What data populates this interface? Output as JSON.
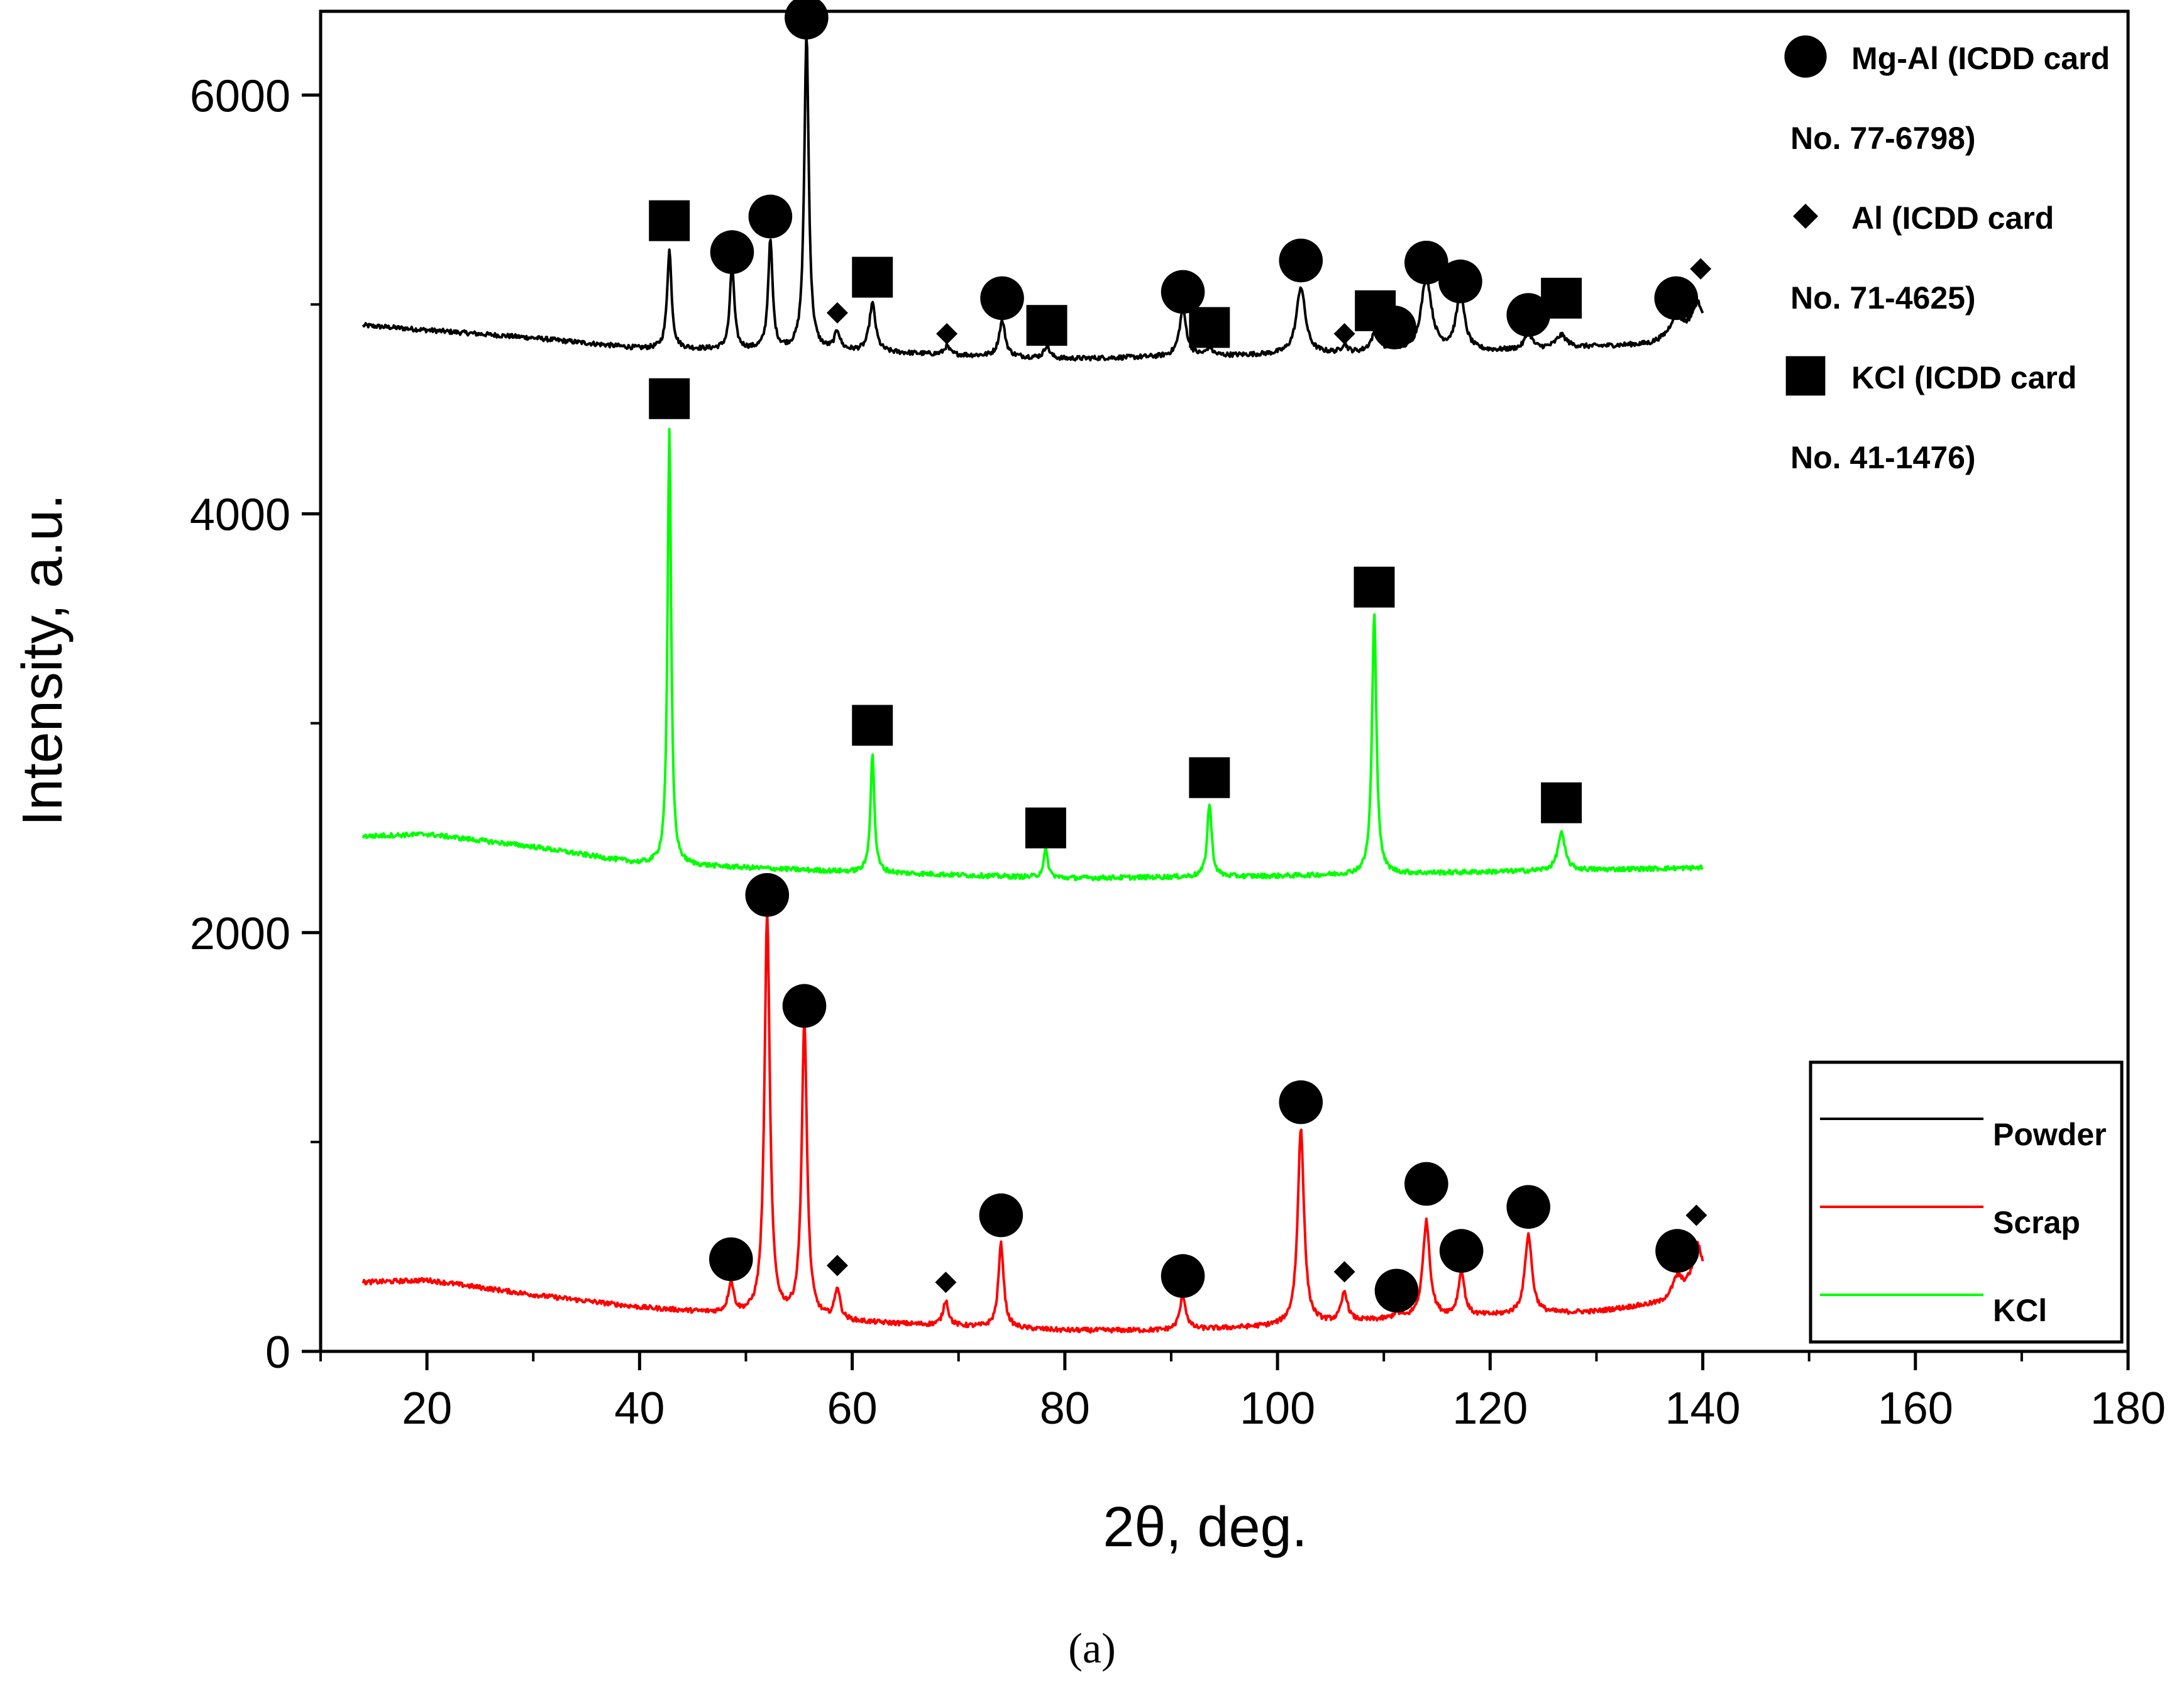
{
  "chart_data": {
    "type": "line",
    "title": "",
    "xlabel": "2θ, deg.",
    "ylabel": "Intensity, a.u.",
    "caption": "(a)",
    "xlim": [
      10,
      180
    ],
    "ylim": [
      0,
      6400
    ],
    "xticks": [
      20,
      40,
      60,
      80,
      100,
      120,
      140,
      160,
      180
    ],
    "xtick_labels": [
      "20",
      "40",
      "60",
      "80",
      "100",
      "120",
      "140",
      "160",
      "180"
    ],
    "yticks": [
      0,
      2000,
      4000,
      6000
    ],
    "ytick_labels": [
      "0",
      "2000",
      "4000",
      "6000"
    ],
    "grid": false,
    "series": [
      {
        "name": "Powder",
        "color": "#000000",
        "baseline": [
          [
            14,
            4900
          ],
          [
            30,
            4840
          ],
          [
            40,
            4790
          ],
          [
            60,
            4775
          ],
          [
            80,
            4740
          ],
          [
            100,
            4760
          ],
          [
            120,
            4775
          ],
          [
            135,
            4810
          ],
          [
            140,
            4890
          ]
        ],
        "peaks": [
          [
            42.8,
            470,
            0.25
          ],
          [
            48.7,
            400,
            0.25
          ],
          [
            52.3,
            520,
            0.25
          ],
          [
            55.7,
            1520,
            0.25
          ],
          [
            58.6,
            90,
            0.3
          ],
          [
            61.9,
            230,
            0.35
          ],
          [
            68.9,
            40,
            0.3
          ],
          [
            74.1,
            170,
            0.35
          ],
          [
            78.3,
            60,
            0.3
          ],
          [
            91.1,
            220,
            0.4
          ],
          [
            93.6,
            40,
            0.3
          ],
          [
            102.2,
            320,
            0.5
          ],
          [
            106.3,
            40,
            0.3
          ],
          [
            109.2,
            90,
            0.5
          ],
          [
            111.0,
            30,
            0.3
          ],
          [
            114.0,
            350,
            0.6
          ],
          [
            117.2,
            260,
            0.5
          ],
          [
            123.6,
            80,
            0.4
          ],
          [
            126.7,
            60,
            0.6
          ],
          [
            137.5,
            100,
            0.6
          ],
          [
            139.5,
            120,
            0.6
          ]
        ]
      },
      {
        "name": "Scrap",
        "color": "#ff0000",
        "baseline": [
          [
            14,
            330
          ],
          [
            20,
            340
          ],
          [
            30,
            270
          ],
          [
            40,
            210
          ],
          [
            50,
            170
          ],
          [
            60,
            140
          ],
          [
            70,
            120
          ],
          [
            80,
            100
          ],
          [
            90,
            100
          ],
          [
            100,
            120
          ],
          [
            110,
            150
          ],
          [
            120,
            170
          ],
          [
            130,
            190
          ],
          [
            136,
            230
          ],
          [
            140,
            340
          ]
        ],
        "peaks": [
          [
            48.6,
            150,
            0.3
          ],
          [
            52.0,
            1920,
            0.3
          ],
          [
            55.5,
            1410,
            0.3
          ],
          [
            58.6,
            150,
            0.3
          ],
          [
            68.8,
            120,
            0.3
          ],
          [
            74.0,
            400,
            0.3
          ],
          [
            91.1,
            160,
            0.35
          ],
          [
            102.2,
            940,
            0.35
          ],
          [
            106.3,
            140,
            0.35
          ],
          [
            111.2,
            30,
            0.3
          ],
          [
            114.0,
            460,
            0.4
          ],
          [
            117.3,
            210,
            0.35
          ],
          [
            123.6,
            380,
            0.4
          ],
          [
            137.6,
            80,
            0.5
          ],
          [
            139.5,
            180,
            0.5
          ]
        ]
      },
      {
        "name": "KCl",
        "color": "#00ff00",
        "baseline": [
          [
            14,
            2460
          ],
          [
            20,
            2470
          ],
          [
            30,
            2410
          ],
          [
            40,
            2330
          ],
          [
            60,
            2290
          ],
          [
            80,
            2260
          ],
          [
            100,
            2270
          ],
          [
            120,
            2290
          ],
          [
            140,
            2310
          ]
        ],
        "peaks": [
          [
            42.8,
            2070,
            0.2
          ],
          [
            61.9,
            570,
            0.22
          ],
          [
            78.2,
            130,
            0.25
          ],
          [
            93.6,
            350,
            0.25
          ],
          [
            109.1,
            1240,
            0.25
          ],
          [
            126.7,
            180,
            0.4
          ]
        ]
      }
    ],
    "markers": [
      {
        "shape": "circle",
        "x": 55.7,
        "y": 6370
      },
      {
        "shape": "circle",
        "x": 48.7,
        "y": 5250
      },
      {
        "shape": "circle",
        "x": 52.3,
        "y": 5420
      },
      {
        "shape": "circle",
        "x": 74.1,
        "y": 5030
      },
      {
        "shape": "circle",
        "x": 91.1,
        "y": 5060
      },
      {
        "shape": "circle",
        "x": 102.2,
        "y": 5210
      },
      {
        "shape": "circle",
        "x": 111.0,
        "y": 4890
      },
      {
        "shape": "circle",
        "x": 114.0,
        "y": 5200
      },
      {
        "shape": "circle",
        "x": 117.2,
        "y": 5110
      },
      {
        "shape": "circle",
        "x": 123.6,
        "y": 4950
      },
      {
        "shape": "circle",
        "x": 137.5,
        "y": 5030
      },
      {
        "shape": "diamond",
        "x": 58.6,
        "y": 4960
      },
      {
        "shape": "diamond",
        "x": 68.9,
        "y": 4860
      },
      {
        "shape": "diamond",
        "x": 106.3,
        "y": 4860
      },
      {
        "shape": "diamond",
        "x": 139.8,
        "y": 5170
      },
      {
        "shape": "square",
        "x": 42.8,
        "y": 5400
      },
      {
        "shape": "square",
        "x": 61.9,
        "y": 5130
      },
      {
        "shape": "square",
        "x": 78.3,
        "y": 4900
      },
      {
        "shape": "square",
        "x": 93.6,
        "y": 4890
      },
      {
        "shape": "square",
        "x": 109.2,
        "y": 4970
      },
      {
        "shape": "square",
        "x": 126.7,
        "y": 5030
      },
      {
        "shape": "square",
        "x": 42.8,
        "y": 4550
      },
      {
        "shape": "square",
        "x": 61.9,
        "y": 2990
      },
      {
        "shape": "square",
        "x": 78.2,
        "y": 2500
      },
      {
        "shape": "square",
        "x": 93.6,
        "y": 2740
      },
      {
        "shape": "square",
        "x": 109.1,
        "y": 3650
      },
      {
        "shape": "square",
        "x": 126.7,
        "y": 2620
      },
      {
        "shape": "circle",
        "x": 52.0,
        "y": 2180
      },
      {
        "shape": "circle",
        "x": 55.5,
        "y": 1650
      },
      {
        "shape": "circle",
        "x": 48.6,
        "y": 440
      },
      {
        "shape": "circle",
        "x": 74.0,
        "y": 650
      },
      {
        "shape": "circle",
        "x": 91.1,
        "y": 360
      },
      {
        "shape": "circle",
        "x": 102.2,
        "y": 1190
      },
      {
        "shape": "circle",
        "x": 111.2,
        "y": 290
      },
      {
        "shape": "circle",
        "x": 114.0,
        "y": 800
      },
      {
        "shape": "circle",
        "x": 117.3,
        "y": 480
      },
      {
        "shape": "circle",
        "x": 123.6,
        "y": 690
      },
      {
        "shape": "circle",
        "x": 137.6,
        "y": 480
      },
      {
        "shape": "diamond",
        "x": 58.6,
        "y": 410
      },
      {
        "shape": "diamond",
        "x": 68.8,
        "y": 330
      },
      {
        "shape": "diamond",
        "x": 106.3,
        "y": 380
      },
      {
        "shape": "diamond",
        "x": 139.4,
        "y": 650
      }
    ],
    "phase_legend": [
      {
        "shape": "circle",
        "line1": "Mg-Al (ICDD card",
        "line2": "No. 77-6798)"
      },
      {
        "shape": "diamond",
        "line1": "Al (ICDD card",
        "line2": "No. 71-4625)"
      },
      {
        "shape": "square",
        "line1": "KCl (ICDD card",
        "line2": "No. 41-1476)"
      }
    ],
    "series_legend": [
      {
        "name": "Powder",
        "color": "#000000"
      },
      {
        "name": "Scrap",
        "color": "#ff0000"
      },
      {
        "name": "KCl",
        "color": "#00ff00"
      }
    ],
    "legend_placement": "phase key top-right outside plot; series key bottom-right inside plot"
  }
}
